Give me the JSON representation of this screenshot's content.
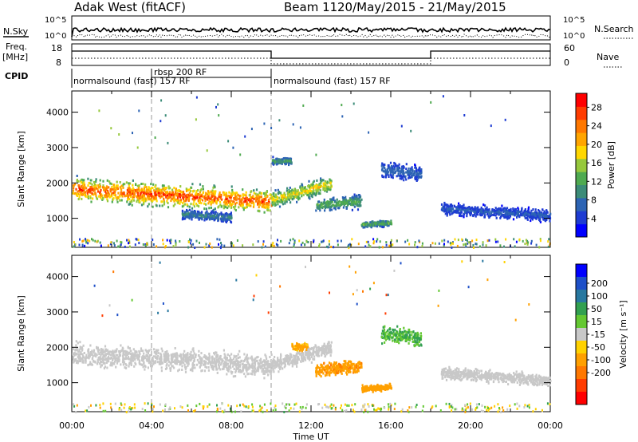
{
  "header": {
    "title": "Adak West (fitACF)",
    "beam": "Beam 11",
    "dates": "20/May/2015 - 21/May/2015"
  },
  "panels": {
    "nsky_label": "N.Sky",
    "nsearch_label": "N.Search",
    "freq_label_1": "Freq.",
    "freq_label_2": "[MHz]",
    "nave_label": "Nave",
    "cpid_label": "CPID",
    "nsky_ticks": [
      "10^5",
      "10^0"
    ],
    "nsearch_ticks": [
      "10^5",
      "10^0"
    ],
    "freq_ticks": [
      "18",
      "8"
    ],
    "nave_ticks": [
      "60",
      "0"
    ],
    "cpid_segments": [
      {
        "start": 0,
        "end": 10,
        "label": "normalsound (fast) 157 RF"
      },
      {
        "start": 4,
        "end": 10,
        "label": "rbsp 200 RF"
      },
      {
        "start": 10,
        "end": 24,
        "label": "normalsound (fast) 157 RF"
      }
    ]
  },
  "colors": {
    "power": [
      "#0000ff",
      "#1e3cd2",
      "#2d64b4",
      "#3c8c78",
      "#4faa50",
      "#96c83c",
      "#ffd700",
      "#ffa500",
      "#ff7800",
      "#ff3c00",
      "#ff0000"
    ],
    "velocity": [
      "#0000ff",
      "#1e50c8",
      "#2878a0",
      "#32a050",
      "#64c832",
      "#c8c8c8",
      "#ffd200",
      "#ffa000",
      "#ff7800",
      "#ff3c00",
      "#ff0000"
    ]
  },
  "chart_data": [
    {
      "type": "heatmap",
      "name": "power",
      "xlabel": "",
      "ylabel": "Slant Range [km]",
      "x_ticks": [
        "00:00",
        "04:00",
        "08:00",
        "12:00",
        "16:00",
        "20:00",
        "00:00"
      ],
      "xlim": [
        0,
        24
      ],
      "ylim": [
        180,
        4600
      ],
      "y_ticks": [
        1000,
        2000,
        3000,
        4000
      ],
      "colorbar": {
        "label": "Power [dB]",
        "ticks": [
          4,
          8,
          12,
          16,
          20,
          24,
          28
        ],
        "range": [
          0,
          31
        ]
      },
      "features": [
        {
          "t0": 0,
          "t1": 10,
          "r_center_start": 1850,
          "r_center_end": 1500,
          "width": 420,
          "peak_dB": 28
        },
        {
          "t0": 10,
          "t1": 13,
          "r_center_start": 1550,
          "r_center_end": 2000,
          "width": 300,
          "peak_dB": 20
        },
        {
          "t0": 5.5,
          "t1": 8,
          "r_center_start": 1150,
          "r_center_end": 1050,
          "width": 180,
          "peak_dB": 10
        },
        {
          "t0": 12.2,
          "t1": 14.5,
          "r_center_start": 1400,
          "r_center_end": 1500,
          "width": 250,
          "peak_dB": 14
        },
        {
          "t0": 14.5,
          "t1": 16,
          "r_center_start": 850,
          "r_center_end": 900,
          "width": 120,
          "peak_dB": 14
        },
        {
          "t0": 15.5,
          "t1": 17.5,
          "r_center_start": 2400,
          "r_center_end": 2300,
          "width": 300,
          "peak_dB": 8
        },
        {
          "t0": 18.5,
          "t1": 24,
          "r_center_start": 1300,
          "r_center_end": 1100,
          "width": 220,
          "peak_dB": 7
        },
        {
          "t0": 10,
          "t1": 11,
          "r_center_start": 2650,
          "r_center_end": 2650,
          "width": 150,
          "peak_dB": 12
        }
      ]
    },
    {
      "type": "heatmap",
      "name": "velocity",
      "xlabel": "Time UT",
      "ylabel": "Slant Range [km]",
      "x_ticks": [
        "00:00",
        "04:00",
        "08:00",
        "12:00",
        "16:00",
        "20:00",
        "00:00"
      ],
      "xlim": [
        0,
        24
      ],
      "ylim": [
        180,
        4600
      ],
      "y_ticks": [
        1000,
        2000,
        3000,
        4000
      ],
      "colorbar": {
        "label": "Velocity [m s⁻¹]",
        "ticks": [
          "200",
          "100",
          "50",
          "15",
          "-15",
          "-50",
          "-100",
          "-200"
        ],
        "range": [
          -250,
          250
        ]
      },
      "features": [
        {
          "t0": 0,
          "t1": 10,
          "r_center_start": 1850,
          "r_center_end": 1500,
          "width": 420,
          "velocity": 0
        },
        {
          "t0": 10,
          "t1": 13,
          "r_center_start": 1550,
          "r_center_end": 2000,
          "width": 300,
          "velocity": 0
        },
        {
          "t0": 12.2,
          "t1": 14.5,
          "r_center_start": 1400,
          "r_center_end": 1500,
          "width": 250,
          "velocity": -90
        },
        {
          "t0": 14.5,
          "t1": 16,
          "r_center_start": 850,
          "r_center_end": 900,
          "width": 120,
          "velocity": -80
        },
        {
          "t0": 11,
          "t1": 11.8,
          "r_center_start": 2050,
          "r_center_end": 2050,
          "width": 150,
          "velocity": -60
        },
        {
          "t0": 15.5,
          "t1": 17.5,
          "r_center_start": 2400,
          "r_center_end": 2300,
          "width": 300,
          "velocity": 50
        },
        {
          "t0": 18.5,
          "t1": 24,
          "r_center_start": 1300,
          "r_center_end": 1100,
          "width": 220,
          "velocity": 0
        }
      ]
    }
  ]
}
